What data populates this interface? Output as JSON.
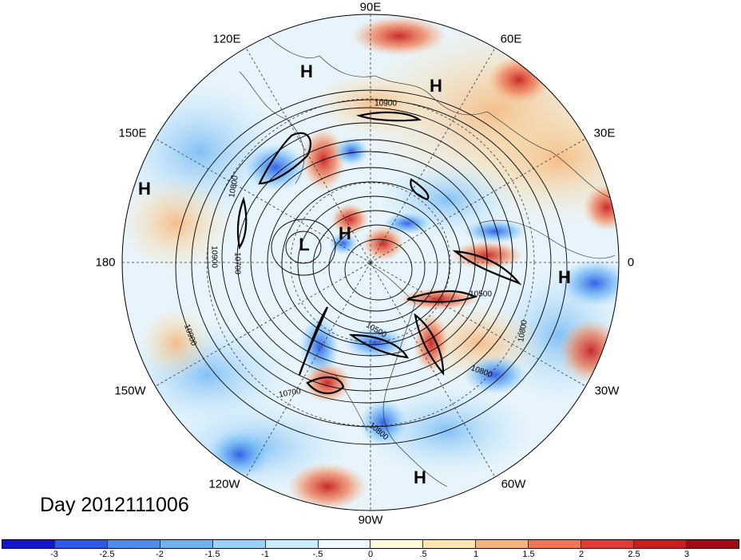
{
  "title": "Day 2012111006",
  "longitude_labels": {
    "lon_90e": "90E",
    "lon_60e": "60E",
    "lon_30e": "30E",
    "lon_0": "0",
    "lon_30w": "30W",
    "lon_60w": "60W",
    "lon_90w": "90W",
    "lon_120w": "120W",
    "lon_150w": "150W",
    "lon_180": "180",
    "lon_150e": "150E",
    "lon_120e": "120E"
  },
  "pressure_centers": [
    "H",
    "H",
    "H",
    "L",
    "H",
    "H",
    "H"
  ],
  "contour_labels": [
    "10900",
    "10800",
    "10900",
    "10700",
    "10900",
    "10500",
    "10800",
    "10800",
    "10700",
    "10500",
    "10800"
  ],
  "colorbar": {
    "colors": [
      "#1414c8",
      "#2a5ae6",
      "#4a8cf0",
      "#6ab4f4",
      "#96d2fa",
      "#c8ecfc",
      "#ecfaff",
      "#fffadc",
      "#fce6aa",
      "#f8b478",
      "#f07850",
      "#e03c32",
      "#c81e1e",
      "#a00a14"
    ],
    "labels": [
      "-3",
      "-2.5",
      "-2",
      "-1.5",
      "-1",
      "-.5",
      "0",
      ".5",
      "1",
      "1.5",
      "2",
      "2.5",
      "3"
    ]
  }
}
